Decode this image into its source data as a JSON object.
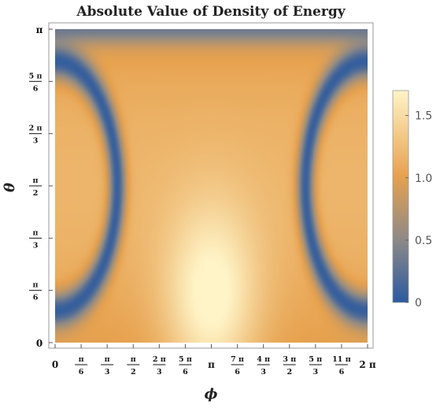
{
  "chart_data": {
    "type": "heatmap",
    "title": "Absolute Value of Density of Energy",
    "xlabel": "ϕ",
    "ylabel": "θ",
    "xlim": [
      0,
      6.2832
    ],
    "ylim": [
      0,
      3.1416
    ],
    "x_ticks": [
      {
        "value": 0,
        "num": "0",
        "den": ""
      },
      {
        "value": 0.5236,
        "num": "π",
        "den": "6"
      },
      {
        "value": 1.0472,
        "num": "π",
        "den": "3"
      },
      {
        "value": 1.5708,
        "num": "π",
        "den": "2"
      },
      {
        "value": 2.0944,
        "num": "2 π",
        "den": "3"
      },
      {
        "value": 2.618,
        "num": "5 π",
        "den": "6"
      },
      {
        "value": 3.1416,
        "num": "π",
        "den": ""
      },
      {
        "value": 3.6652,
        "num": "7 π",
        "den": "6"
      },
      {
        "value": 4.1888,
        "num": "4 π",
        "den": "3"
      },
      {
        "value": 4.7124,
        "num": "3 π",
        "den": "2"
      },
      {
        "value": 5.236,
        "num": "5 π",
        "den": "3"
      },
      {
        "value": 5.7596,
        "num": "11 π",
        "den": "6"
      },
      {
        "value": 6.2832,
        "num": "2 π",
        "den": ""
      }
    ],
    "y_ticks": [
      {
        "value": 0,
        "num": "0",
        "den": ""
      },
      {
        "value": 0.5236,
        "num": "π",
        "den": "6"
      },
      {
        "value": 1.0472,
        "num": "π",
        "den": "3"
      },
      {
        "value": 1.5708,
        "num": "π",
        "den": "2"
      },
      {
        "value": 2.0944,
        "num": "2 π",
        "den": "3"
      },
      {
        "value": 2.618,
        "num": "5 π",
        "den": "6"
      },
      {
        "value": 3.1416,
        "num": "π",
        "den": ""
      }
    ],
    "colorbar": {
      "min": 0,
      "max": 1.7,
      "ticks": [
        {
          "value": 0,
          "label": "0"
        },
        {
          "value": 0.5,
          "label": "0.5"
        },
        {
          "value": 1.0,
          "label": "1.0"
        },
        {
          "value": 1.5,
          "label": "1.5"
        }
      ],
      "colors": [
        "#2b5aa0",
        "#8f8a86",
        "#e7a24f",
        "#fff4c7"
      ]
    },
    "features": [
      {
        "kind": "ring",
        "center": [
          0,
          1.5708
        ],
        "radius": 1.25,
        "min_value": 0.05
      },
      {
        "kind": "ring",
        "center": [
          6.2832,
          1.5708
        ],
        "radius": 1.25,
        "min_value": 0.05
      },
      {
        "kind": "peak",
        "center": [
          3.1416,
          0.4
        ],
        "value": 1.7
      }
    ]
  }
}
